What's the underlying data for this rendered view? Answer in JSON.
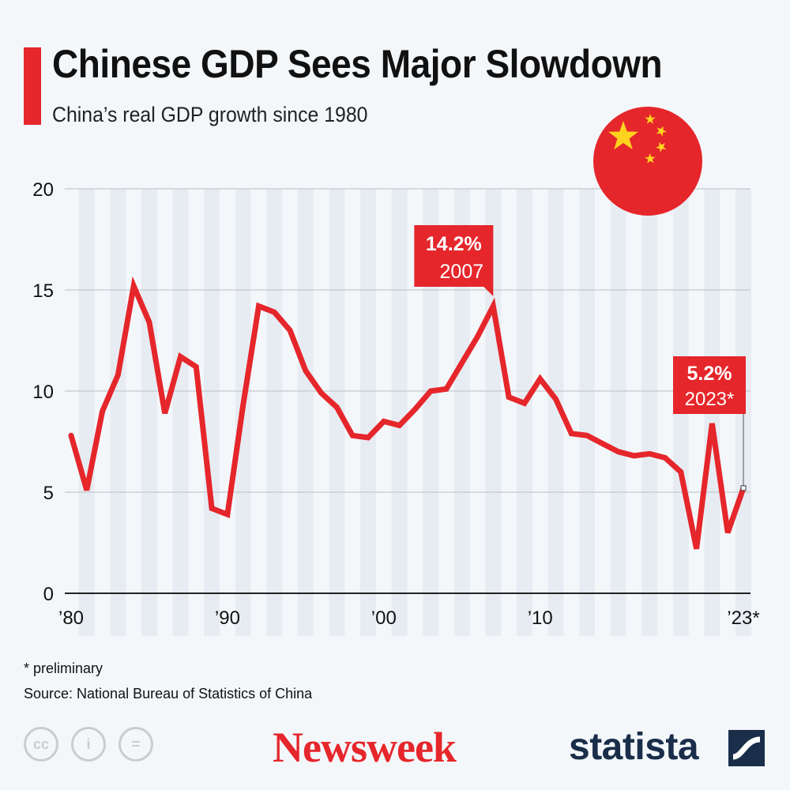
{
  "header": {
    "title": "Chinese GDP Sees Major Slowdown",
    "subtitle": "China’s real GDP growth since 1980"
  },
  "footer": {
    "note": "* preliminary",
    "source": "Source: National Bureau of Statistics of China",
    "brand1": "Newsweek",
    "brand2": "statista",
    "license_icons": [
      "cc-icon",
      "attribution-icon",
      "no-derivatives-icon"
    ]
  },
  "colors": {
    "line": "#e5262b",
    "background": "#f4f7fa",
    "stripe": "#e7ecf2",
    "flag": "#e5262b",
    "star": "#ffd21f"
  },
  "chart_data": {
    "type": "line",
    "title": "",
    "xlabel": "",
    "ylabel": "",
    "ylim": [
      0,
      20
    ],
    "yticks": [
      "0",
      "5",
      "10",
      "15",
      "20"
    ],
    "xticks": [
      {
        "year": 1980,
        "label": "’80"
      },
      {
        "year": 1990,
        "label": "’90"
      },
      {
        "year": 2000,
        "label": "’00"
      },
      {
        "year": 2010,
        "label": "’10"
      },
      {
        "year": 2023,
        "label": "’23*"
      }
    ],
    "grid": true,
    "x": [
      1980,
      1981,
      1982,
      1983,
      1984,
      1985,
      1986,
      1987,
      1988,
      1989,
      1990,
      1991,
      1992,
      1993,
      1994,
      1995,
      1996,
      1997,
      1998,
      1999,
      2000,
      2001,
      2002,
      2003,
      2004,
      2005,
      2006,
      2007,
      2008,
      2009,
      2010,
      2011,
      2012,
      2013,
      2014,
      2015,
      2016,
      2017,
      2018,
      2019,
      2020,
      2021,
      2022,
      2023
    ],
    "values": [
      7.8,
      5.1,
      9.0,
      10.8,
      15.2,
      13.4,
      8.9,
      11.7,
      11.2,
      4.2,
      3.9,
      9.3,
      14.2,
      13.9,
      13.0,
      11.0,
      9.9,
      9.2,
      7.8,
      7.7,
      8.5,
      8.3,
      9.1,
      10.0,
      10.1,
      11.4,
      12.7,
      14.2,
      9.7,
      9.4,
      10.6,
      9.6,
      7.9,
      7.8,
      7.4,
      7.0,
      6.8,
      6.9,
      6.7,
      6.0,
      2.2,
      8.4,
      3.0,
      5.2
    ],
    "annotations": [
      {
        "year": 2007,
        "value_label": "14.2%",
        "year_label": "2007"
      },
      {
        "year": 2023,
        "value_label": "5.2%",
        "year_label": "2023*"
      }
    ]
  }
}
